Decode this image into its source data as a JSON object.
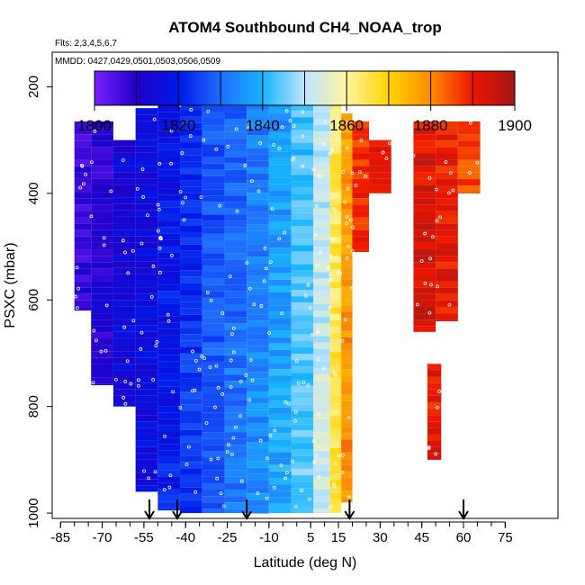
{
  "chart_data": {
    "type": "heatmap",
    "title": "ATOM4 Southbound CH4_NOAA_trop",
    "flights_note": "Flts: 2,3,4,5,6,7",
    "dates_note": "MMDD: 0427,0429,0501,0503,0506,0509",
    "xlabel": "Latitude (deg N)",
    "ylabel": "PSXC (mbar)",
    "x_ticks": [
      -85,
      -70,
      -55,
      -40,
      -25,
      -10,
      5,
      15,
      30,
      45,
      60,
      75
    ],
    "x_tick_labels": [
      "-85",
      "-70",
      "-55",
      "-40",
      "-25",
      "-10",
      "5",
      "15",
      "30",
      "45",
      "60",
      "75"
    ],
    "xlim": [
      -88,
      94
    ],
    "y_ticks": [
      200,
      400,
      600,
      800,
      1000
    ],
    "y_tick_labels": [
      "200",
      "400",
      "600",
      "800",
      "1000"
    ],
    "ylim": [
      1010,
      135
    ],
    "colorbar": {
      "min": 1800,
      "max": 1900,
      "ticks": [
        1800,
        1820,
        1840,
        1860,
        1880,
        1900
      ],
      "tick_labels": [
        "1800",
        "1820",
        "1840",
        "1860",
        "1880",
        "1900"
      ],
      "colors": [
        "#7a1fff",
        "#2000c8",
        "#0018e8",
        "#1f6cff",
        "#16b4ff",
        "#bde4ff",
        "#fff5a0",
        "#ffd400",
        "#ff8c00",
        "#ee1500",
        "#a01616"
      ]
    },
    "arrows_latitude": [
      -53,
      -43,
      -18,
      19,
      60
    ],
    "profiles": [
      {
        "lat": [
          -80,
          -74
        ],
        "p_top": 265,
        "p_bottom": 620,
        "value": 1807
      },
      {
        "lat": [
          -74,
          -66
        ],
        "p_top": 265,
        "p_bottom": 760,
        "value": 1809
      },
      {
        "lat": [
          -66,
          -58
        ],
        "p_top": 300,
        "p_bottom": 800,
        "value": 1814
      },
      {
        "lat": [
          -58,
          -50
        ],
        "p_top": 240,
        "p_bottom": 960,
        "value": 1815
      },
      {
        "lat": [
          -50,
          -42
        ],
        "p_top": 235,
        "p_bottom": 995,
        "value": 1818
      },
      {
        "lat": [
          -42,
          -34
        ],
        "p_top": 220,
        "p_bottom": 1000,
        "value": 1822
      },
      {
        "lat": [
          -34,
          -26
        ],
        "p_top": 200,
        "p_bottom": 1000,
        "value": 1826
      },
      {
        "lat": [
          -26,
          -18
        ],
        "p_top": 200,
        "p_bottom": 1000,
        "value": 1829
      },
      {
        "lat": [
          -18,
          -10
        ],
        "p_top": 195,
        "p_bottom": 1000,
        "value": 1832
      },
      {
        "lat": [
          -10,
          -2
        ],
        "p_top": 190,
        "p_bottom": 1000,
        "value": 1836
      },
      {
        "lat": [
          -2,
          6
        ],
        "p_top": 185,
        "p_bottom": 1000,
        "value": 1842
      },
      {
        "lat": [
          6,
          12
        ],
        "p_top": 200,
        "p_bottom": 1000,
        "value": 1850
      },
      {
        "lat": [
          12,
          16
        ],
        "p_top": 230,
        "p_bottom": 1000,
        "value": 1864
      },
      {
        "lat": [
          16,
          20
        ],
        "p_top": 250,
        "p_bottom": 980,
        "value": 1877
      },
      {
        "lat": [
          20,
          26
        ],
        "p_top": 265,
        "p_bottom": 510,
        "value": 1888
      },
      {
        "lat": [
          26,
          34
        ],
        "p_top": 300,
        "p_bottom": 400,
        "value": 1892
      },
      {
        "lat": [
          42,
          50
        ],
        "p_top": 265,
        "p_bottom": 660,
        "value": 1892
      },
      {
        "lat": [
          50,
          58
        ],
        "p_top": 265,
        "p_bottom": 640,
        "value": 1890
      },
      {
        "lat": [
          58,
          66
        ],
        "p_top": 265,
        "p_bottom": 400,
        "value": 1886
      },
      {
        "lat": [
          47,
          52
        ],
        "p_top": 720,
        "p_bottom": 900,
        "value": 1890
      }
    ]
  }
}
